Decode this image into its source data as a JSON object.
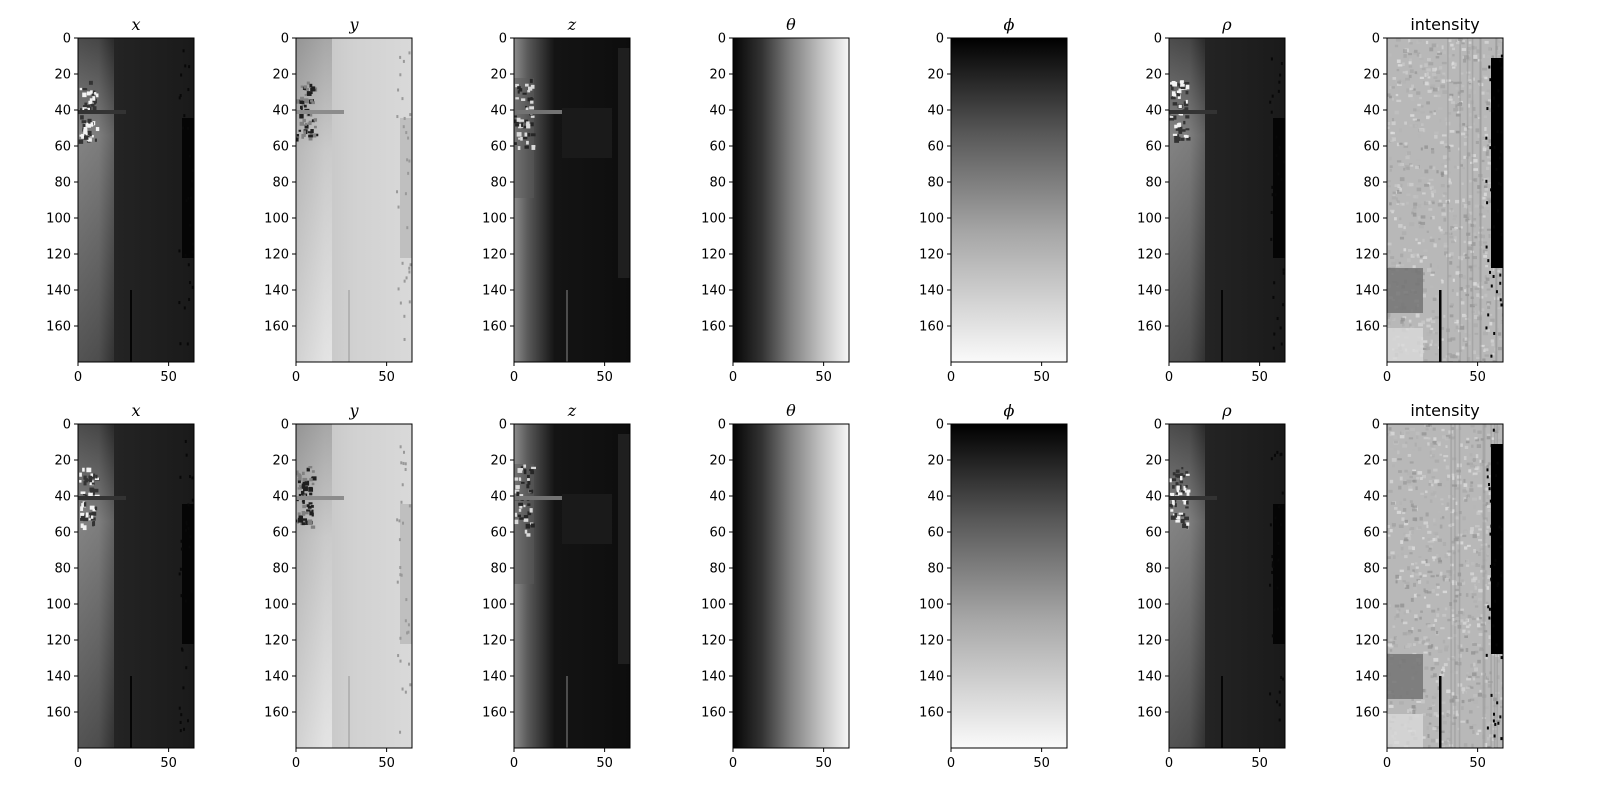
{
  "chart_data": [
    {
      "type": "heatmap",
      "title": "x",
      "math": true,
      "row": 0,
      "col": 0,
      "colormap": "gray",
      "pattern": "x",
      "xlim": [
        0,
        64
      ],
      "ylim": [
        180,
        0
      ],
      "xticks": [
        0,
        50
      ],
      "yticks": [
        0,
        20,
        40,
        60,
        80,
        100,
        120,
        140,
        160
      ]
    },
    {
      "type": "heatmap",
      "title": "y",
      "math": true,
      "row": 0,
      "col": 1,
      "colormap": "gray",
      "pattern": "y",
      "xlim": [
        0,
        64
      ],
      "ylim": [
        180,
        0
      ],
      "xticks": [
        0,
        50
      ],
      "yticks": [
        0,
        20,
        40,
        60,
        80,
        100,
        120,
        140,
        160
      ]
    },
    {
      "type": "heatmap",
      "title": "z",
      "math": true,
      "row": 0,
      "col": 2,
      "colormap": "gray",
      "pattern": "z",
      "xlim": [
        0,
        64
      ],
      "ylim": [
        180,
        0
      ],
      "xticks": [
        0,
        50
      ],
      "yticks": [
        0,
        20,
        40,
        60,
        80,
        100,
        120,
        140,
        160
      ]
    },
    {
      "type": "heatmap",
      "title": "θ",
      "math": true,
      "row": 0,
      "col": 3,
      "colormap": "gray",
      "pattern": "theta",
      "xlim": [
        0,
        64
      ],
      "ylim": [
        180,
        0
      ],
      "xticks": [
        0,
        50
      ],
      "yticks": [
        0,
        20,
        40,
        60,
        80,
        100,
        120,
        140,
        160
      ]
    },
    {
      "type": "heatmap",
      "title": "ϕ",
      "math": true,
      "row": 0,
      "col": 4,
      "colormap": "gray",
      "pattern": "phi",
      "xlim": [
        0,
        64
      ],
      "ylim": [
        180,
        0
      ],
      "xticks": [
        0,
        50
      ],
      "yticks": [
        0,
        20,
        40,
        60,
        80,
        100,
        120,
        140,
        160
      ]
    },
    {
      "type": "heatmap",
      "title": "ρ",
      "math": true,
      "row": 0,
      "col": 5,
      "colormap": "gray",
      "pattern": "rho",
      "xlim": [
        0,
        64
      ],
      "ylim": [
        180,
        0
      ],
      "xticks": [
        0,
        50
      ],
      "yticks": [
        0,
        20,
        40,
        60,
        80,
        100,
        120,
        140,
        160
      ]
    },
    {
      "type": "heatmap",
      "title": "intensity",
      "math": false,
      "row": 0,
      "col": 6,
      "colormap": "gray",
      "pattern": "intensity",
      "xlim": [
        0,
        64
      ],
      "ylim": [
        180,
        0
      ],
      "xticks": [
        0,
        50
      ],
      "yticks": [
        0,
        20,
        40,
        60,
        80,
        100,
        120,
        140,
        160
      ]
    },
    {
      "type": "heatmap",
      "title": "x",
      "math": true,
      "row": 1,
      "col": 0,
      "colormap": "gray",
      "pattern": "x",
      "xlim": [
        0,
        64
      ],
      "ylim": [
        180,
        0
      ],
      "xticks": [
        0,
        50
      ],
      "yticks": [
        0,
        20,
        40,
        60,
        80,
        100,
        120,
        140,
        160
      ]
    },
    {
      "type": "heatmap",
      "title": "y",
      "math": true,
      "row": 1,
      "col": 1,
      "colormap": "gray",
      "pattern": "y",
      "xlim": [
        0,
        64
      ],
      "ylim": [
        180,
        0
      ],
      "xticks": [
        0,
        50
      ],
      "yticks": [
        0,
        20,
        40,
        60,
        80,
        100,
        120,
        140,
        160
      ]
    },
    {
      "type": "heatmap",
      "title": "z",
      "math": true,
      "row": 1,
      "col": 2,
      "colormap": "gray",
      "pattern": "z",
      "xlim": [
        0,
        64
      ],
      "ylim": [
        180,
        0
      ],
      "xticks": [
        0,
        50
      ],
      "yticks": [
        0,
        20,
        40,
        60,
        80,
        100,
        120,
        140,
        160
      ]
    },
    {
      "type": "heatmap",
      "title": "θ",
      "math": true,
      "row": 1,
      "col": 3,
      "colormap": "gray",
      "pattern": "theta",
      "xlim": [
        0,
        64
      ],
      "ylim": [
        180,
        0
      ],
      "xticks": [
        0,
        50
      ],
      "yticks": [
        0,
        20,
        40,
        60,
        80,
        100,
        120,
        140,
        160
      ]
    },
    {
      "type": "heatmap",
      "title": "ϕ",
      "math": true,
      "row": 1,
      "col": 4,
      "colormap": "gray",
      "pattern": "phi",
      "xlim": [
        0,
        64
      ],
      "ylim": [
        180,
        0
      ],
      "xticks": [
        0,
        50
      ],
      "yticks": [
        0,
        20,
        40,
        60,
        80,
        100,
        120,
        140,
        160
      ]
    },
    {
      "type": "heatmap",
      "title": "ρ",
      "math": true,
      "row": 1,
      "col": 5,
      "colormap": "gray",
      "pattern": "rho",
      "xlim": [
        0,
        64
      ],
      "ylim": [
        180,
        0
      ],
      "xticks": [
        0,
        50
      ],
      "yticks": [
        0,
        20,
        40,
        60,
        80,
        100,
        120,
        140,
        160
      ]
    },
    {
      "type": "heatmap",
      "title": "intensity",
      "math": false,
      "row": 1,
      "col": 6,
      "colormap": "gray",
      "pattern": "intensity",
      "xlim": [
        0,
        64
      ],
      "ylim": [
        180,
        0
      ],
      "xticks": [
        0,
        50
      ],
      "yticks": [
        0,
        20,
        40,
        60,
        80,
        100,
        120,
        140,
        160
      ]
    }
  ]
}
